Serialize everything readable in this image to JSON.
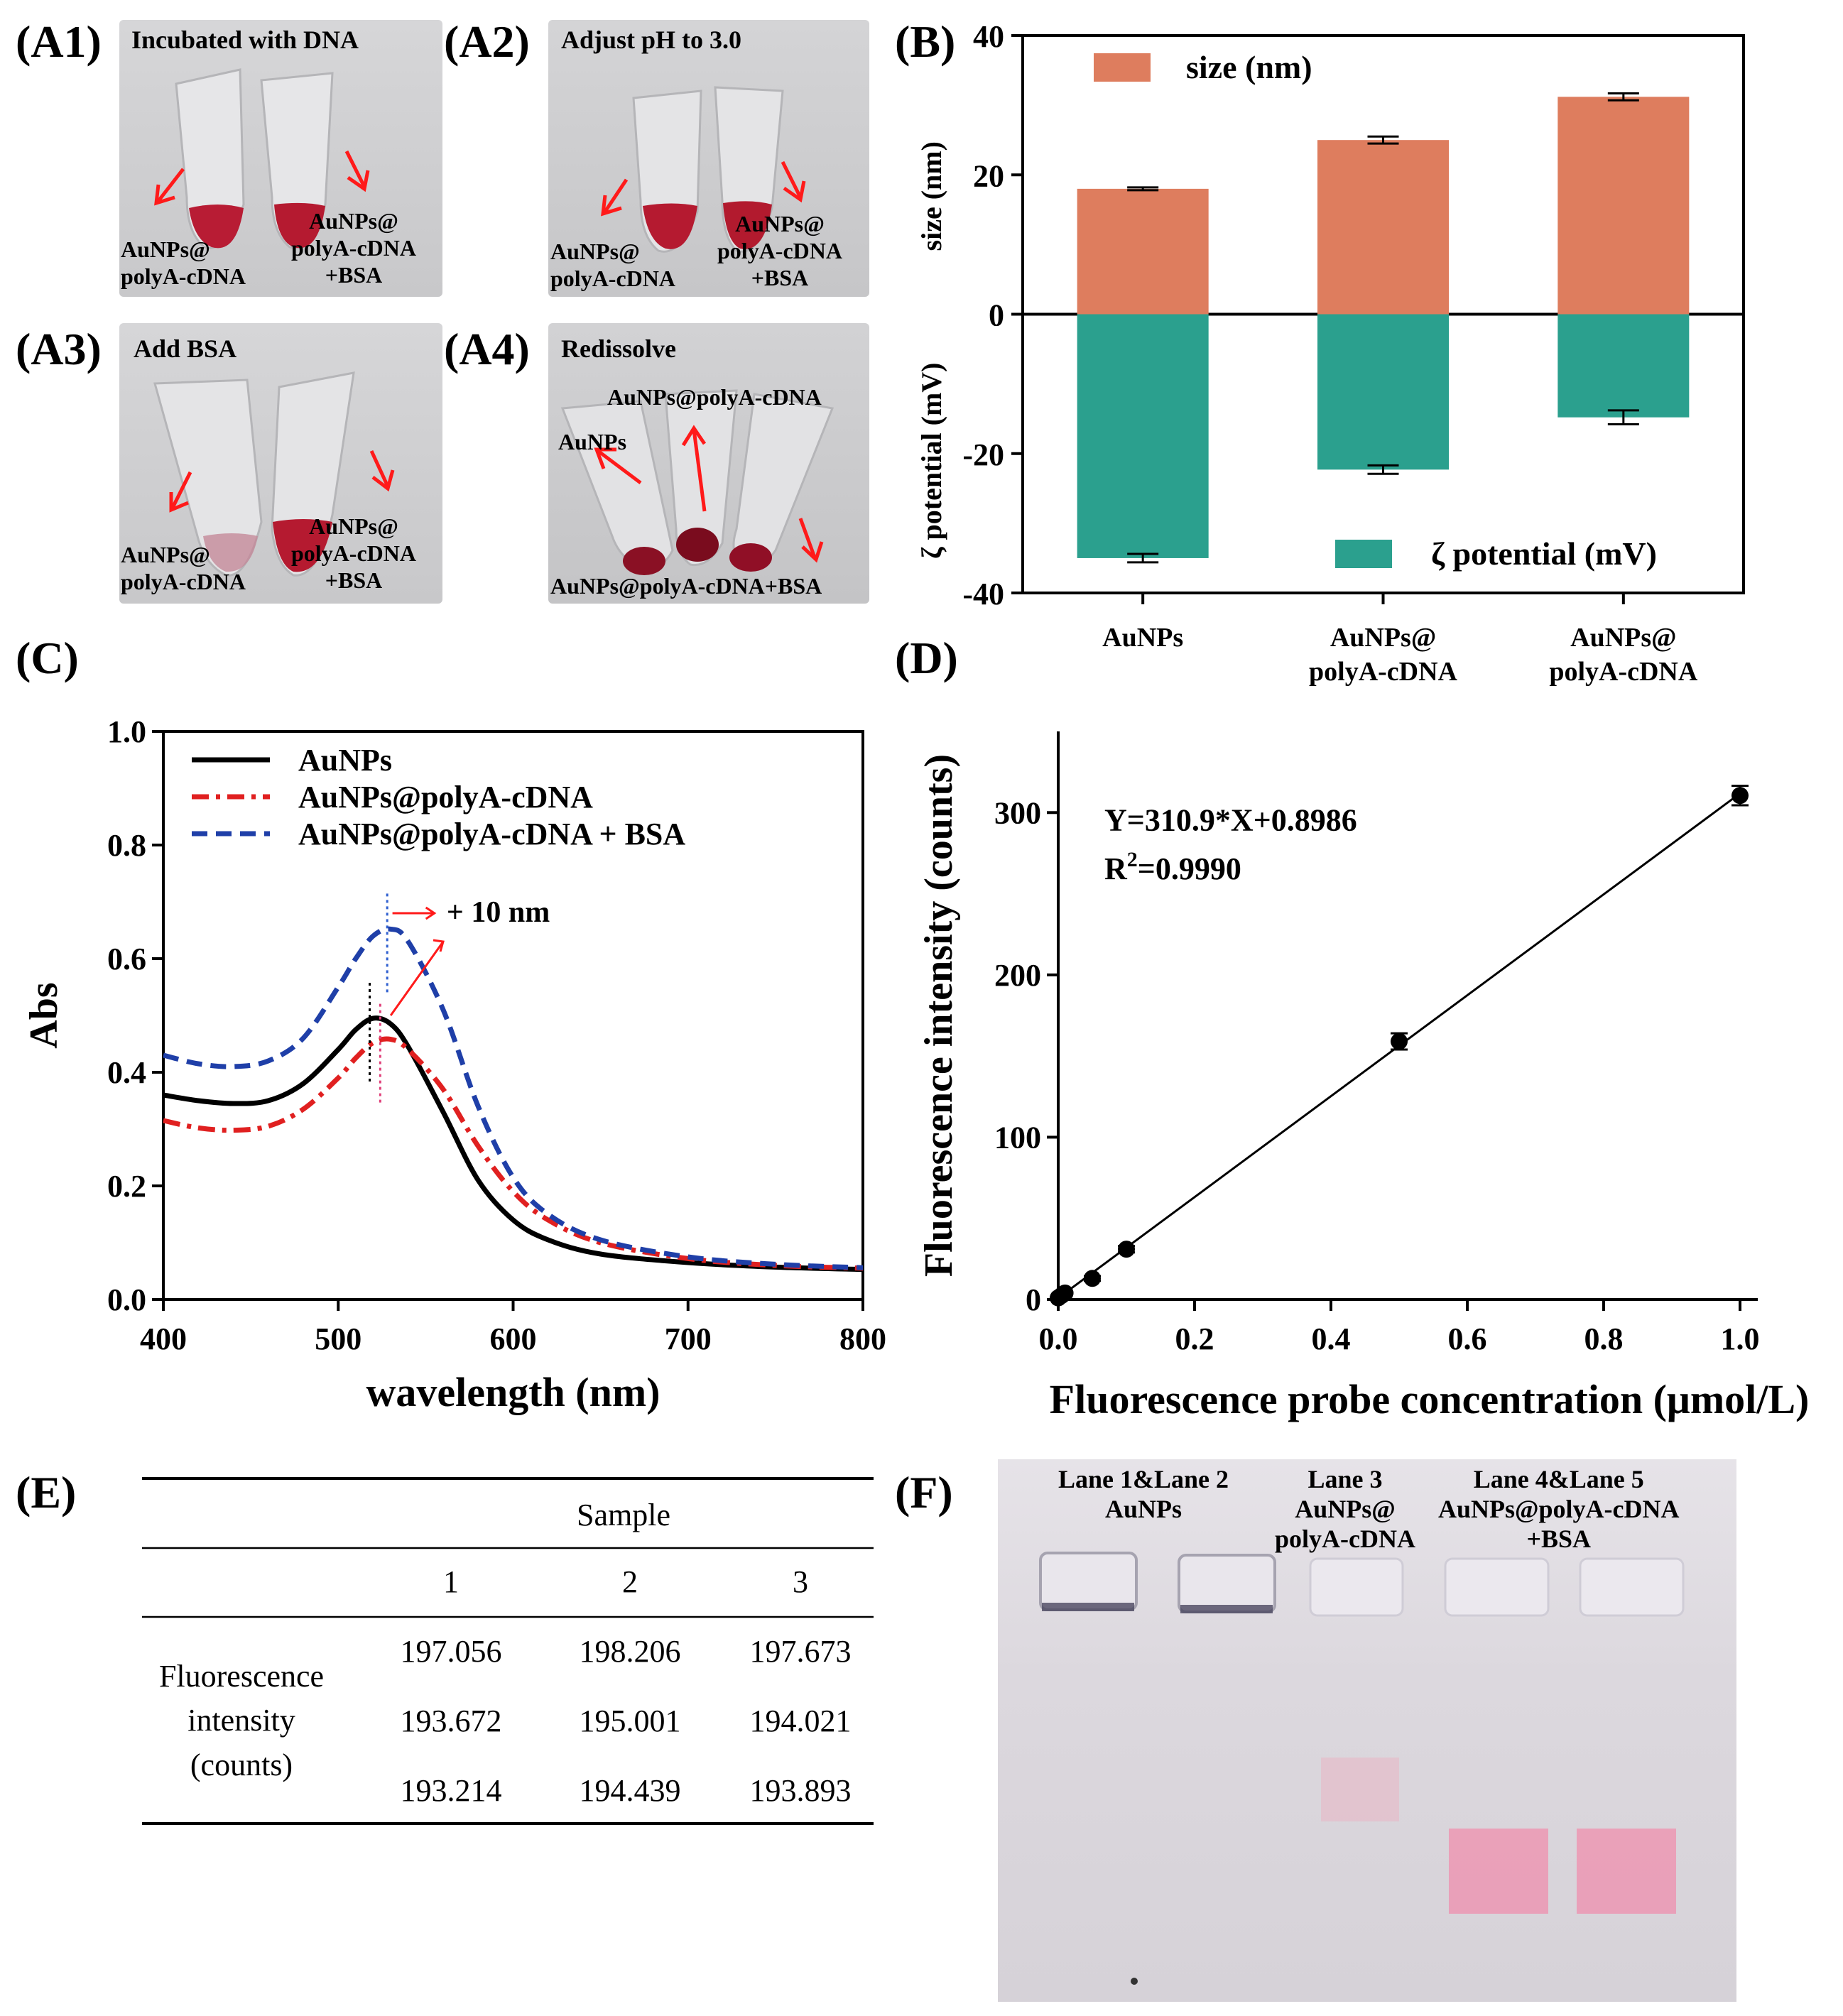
{
  "panels": {
    "a1": {
      "label": "(A1)",
      "caption": "Incubated with DNA",
      "left": "AuNPs@\npolyA-cDNA",
      "right": "AuNPs@\npolyA-cDNA\n+BSA"
    },
    "a2": {
      "label": "(A2)",
      "caption": "Adjust pH to 3.0",
      "left": "AuNPs@\npolyA-cDNA",
      "right": "AuNPs@\npolyA-cDNA\n+BSA"
    },
    "a3": {
      "label": "(A3)",
      "caption": "Add BSA",
      "left": "AuNPs@\npolyA-cDNA",
      "right": "AuNPs@\npolyA-cDNA\n+BSA"
    },
    "a4": {
      "label": "(A4)",
      "caption": "Redissolve",
      "top": "AuNPs@polyA-cDNA",
      "left": "AuNPs",
      "bottom": "AuNPs@polyA-cDNA+BSA"
    },
    "b": {
      "label": "(B)"
    },
    "c": {
      "label": "(C)"
    },
    "d": {
      "label": "(D)"
    },
    "e": {
      "label": "(E)"
    },
    "f": {
      "label": "(F)"
    }
  },
  "chart_data": [
    {
      "id": "B",
      "type": "bar",
      "categories": [
        "AuNPs",
        "AuNPs@\npolyA-cDNA",
        "AuNPs@\npolyA-cDNA"
      ],
      "series": [
        {
          "name": "size (nm)",
          "values": [
            18.0,
            25.0,
            31.2
          ],
          "errors": [
            0.2,
            0.5,
            0.5
          ],
          "color": "#DE7D5E"
        },
        {
          "name": "ζ potential (mV)",
          "values": [
            -35.0,
            -22.3,
            -14.8
          ],
          "errors": [
            0.6,
            0.6,
            1.0
          ],
          "color": "#2BA08E"
        }
      ],
      "ylabel_top": "size (nm)",
      "ylabel_bottom": "ζ potential (mV)",
      "ylim": [
        -40,
        40
      ],
      "yticks": [
        "40",
        "20",
        "0",
        "-20",
        "-40"
      ]
    },
    {
      "id": "C",
      "type": "line",
      "xlabel": "wavelength (nm)",
      "ylabel": "Abs",
      "xlim": [
        400,
        800
      ],
      "ylim": [
        0.0,
        1.0
      ],
      "xticks": [
        "400",
        "500",
        "600",
        "700",
        "800"
      ],
      "yticks": [
        "0.0",
        "0.2",
        "0.4",
        "0.6",
        "0.8",
        "1.0"
      ],
      "x": [
        400,
        420,
        440,
        460,
        480,
        500,
        510,
        520,
        530,
        540,
        560,
        580,
        600,
        620,
        650,
        700,
        750,
        800
      ],
      "series": [
        {
          "name": "AuNPs",
          "color": "#000000",
          "dash": "solid",
          "values": [
            0.36,
            0.35,
            0.345,
            0.35,
            0.38,
            0.44,
            0.475,
            0.495,
            0.485,
            0.445,
            0.33,
            0.21,
            0.14,
            0.105,
            0.08,
            0.065,
            0.057,
            0.053
          ]
        },
        {
          "name": "AuNPs@polyA-cDNA",
          "color": "#E02020",
          "dash": "dashdot",
          "values": [
            0.315,
            0.302,
            0.298,
            0.305,
            0.335,
            0.39,
            0.425,
            0.452,
            0.458,
            0.44,
            0.37,
            0.27,
            0.19,
            0.14,
            0.1,
            0.072,
            0.06,
            0.055
          ]
        },
        {
          "name": "AuNPs@polyA-cDNA + BSA",
          "color": "#1F3FA8",
          "dash": "dash",
          "values": [
            0.43,
            0.415,
            0.41,
            0.42,
            0.46,
            0.55,
            0.6,
            0.64,
            0.652,
            0.63,
            0.51,
            0.34,
            0.215,
            0.15,
            0.105,
            0.075,
            0.062,
            0.056
          ]
        }
      ],
      "annotation": "+ 10 nm"
    },
    {
      "id": "D",
      "type": "scatter",
      "xlabel": "Fluorescence probe concentration (μmol/L)",
      "ylabel": "Fluorescence intensity (counts)",
      "xlim": [
        0.0,
        1.0
      ],
      "ylim": [
        0,
        350
      ],
      "xticks": [
        "0.0",
        "0.2",
        "0.4",
        "0.6",
        "0.8",
        "1.0"
      ],
      "yticks": [
        "0",
        "100",
        "200",
        "300"
      ],
      "x": [
        0.0,
        0.005,
        0.01,
        0.05,
        0.1,
        0.5,
        1.0
      ],
      "values": [
        1.0,
        2.5,
        4.0,
        13.0,
        31.0,
        159.0,
        310.5
      ],
      "errors": [
        0.5,
        0.5,
        0.5,
        1.5,
        2.0,
        5.0,
        6.0
      ],
      "fit": {
        "slope": 310.9,
        "intercept": 0.8986
      },
      "equation": "Y=310.9*X+0.8986",
      "r2_label": "R",
      "r2_sup": "2",
      "r2_value": "=0.9990"
    }
  ],
  "table": {
    "header": "Sample",
    "columns": [
      "1",
      "2",
      "3"
    ],
    "row_label": [
      "Fluorescence",
      "intensity",
      "(counts)"
    ],
    "rows": [
      [
        "197.056",
        "198.206",
        "197.673"
      ],
      [
        "193.672",
        "195.001",
        "194.021"
      ],
      [
        "193.214",
        "194.439",
        "193.893"
      ]
    ]
  },
  "gel": {
    "lane12": "Lane 1&Lane 2\nAuNPs",
    "lane3": "Lane 3\nAuNPs@\npolyA-cDNA",
    "lane45": "Lane 4&Lane 5\nAuNPs@polyA-cDNA\n+BSA"
  }
}
